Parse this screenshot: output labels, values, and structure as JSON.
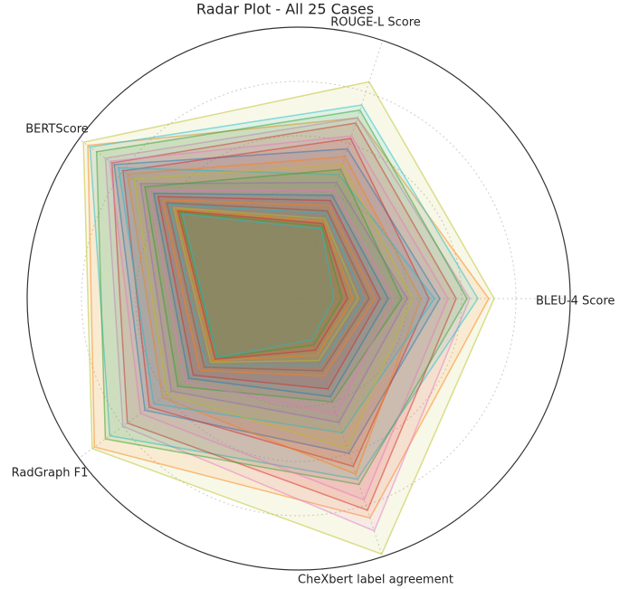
{
  "chart_data": {
    "type": "radar",
    "title": "Radar Plot - All 25 Cases",
    "categories": [
      "BLEU-4 Score",
      "ROUGE-L Score",
      "BERTScore",
      "RadGraph F1",
      "CheXbert label agreement"
    ],
    "rlim": [
      0,
      1
    ],
    "rgrid": [
      0.2,
      0.4,
      0.6,
      0.8
    ],
    "grid": true,
    "series": [
      {
        "color": "#bcbd22",
        "values": [
          0.72,
          0.84,
          0.98,
          0.94,
          0.99
        ]
      },
      {
        "color": "#ff7f0e",
        "values": [
          0.7,
          0.7,
          0.96,
          0.93,
          0.85
        ]
      },
      {
        "color": "#e377c2",
        "values": [
          0.63,
          0.7,
          0.88,
          0.8,
          0.9
        ]
      },
      {
        "color": "#17becf",
        "values": [
          0.66,
          0.75,
          0.95,
          0.86,
          0.7
        ]
      },
      {
        "color": "#d62728",
        "values": [
          0.58,
          0.68,
          0.85,
          0.78,
          0.82
        ]
      },
      {
        "color": "#2ca02c",
        "values": [
          0.62,
          0.73,
          0.92,
          0.88,
          0.72
        ]
      },
      {
        "color": "#e377c2",
        "values": [
          0.55,
          0.63,
          0.86,
          0.72,
          0.78
        ]
      },
      {
        "color": "#1f77b4",
        "values": [
          0.52,
          0.58,
          0.84,
          0.7,
          0.6
        ]
      },
      {
        "color": "#d62728",
        "values": [
          0.48,
          0.62,
          0.8,
          0.68,
          0.65
        ]
      },
      {
        "color": "#ff7f0e",
        "values": [
          0.45,
          0.55,
          0.78,
          0.62,
          0.68
        ]
      },
      {
        "color": "#17becf",
        "values": [
          0.5,
          0.48,
          0.82,
          0.66,
          0.52
        ]
      },
      {
        "color": "#bcbd22",
        "values": [
          0.42,
          0.52,
          0.75,
          0.6,
          0.58
        ]
      },
      {
        "color": "#9467bd",
        "values": [
          0.4,
          0.45,
          0.72,
          0.58,
          0.48
        ]
      },
      {
        "color": "#2ca02c",
        "values": [
          0.38,
          0.5,
          0.7,
          0.55,
          0.4
        ]
      },
      {
        "color": "#e377c2",
        "values": [
          0.35,
          0.42,
          0.68,
          0.52,
          0.45
        ]
      },
      {
        "color": "#1f77b4",
        "values": [
          0.33,
          0.4,
          0.66,
          0.5,
          0.38
        ]
      },
      {
        "color": "#d62728",
        "values": [
          0.3,
          0.38,
          0.64,
          0.48,
          0.35
        ]
      },
      {
        "color": "#ff7f0e",
        "values": [
          0.28,
          0.36,
          0.62,
          0.45,
          0.3
        ]
      },
      {
        "color": "#8c564b",
        "values": [
          0.26,
          0.34,
          0.6,
          0.43,
          0.28
        ]
      },
      {
        "color": "#17becf",
        "values": [
          0.24,
          0.33,
          0.59,
          0.42,
          0.26
        ]
      },
      {
        "color": "#bcbd22",
        "values": [
          0.22,
          0.31,
          0.57,
          0.4,
          0.24
        ]
      },
      {
        "color": "#ff7f0e",
        "values": [
          0.2,
          0.3,
          0.56,
          0.39,
          0.22
        ]
      },
      {
        "color": "#d62728",
        "values": [
          0.18,
          0.29,
          0.55,
          0.38,
          0.2
        ]
      },
      {
        "color": "#2ca02c",
        "values": [
          0.16,
          0.28,
          0.54,
          0.37,
          0.18
        ]
      },
      {
        "color": "#17becf",
        "values": [
          0.13,
          0.27,
          0.53,
          0.37,
          0.16
        ]
      }
    ]
  }
}
